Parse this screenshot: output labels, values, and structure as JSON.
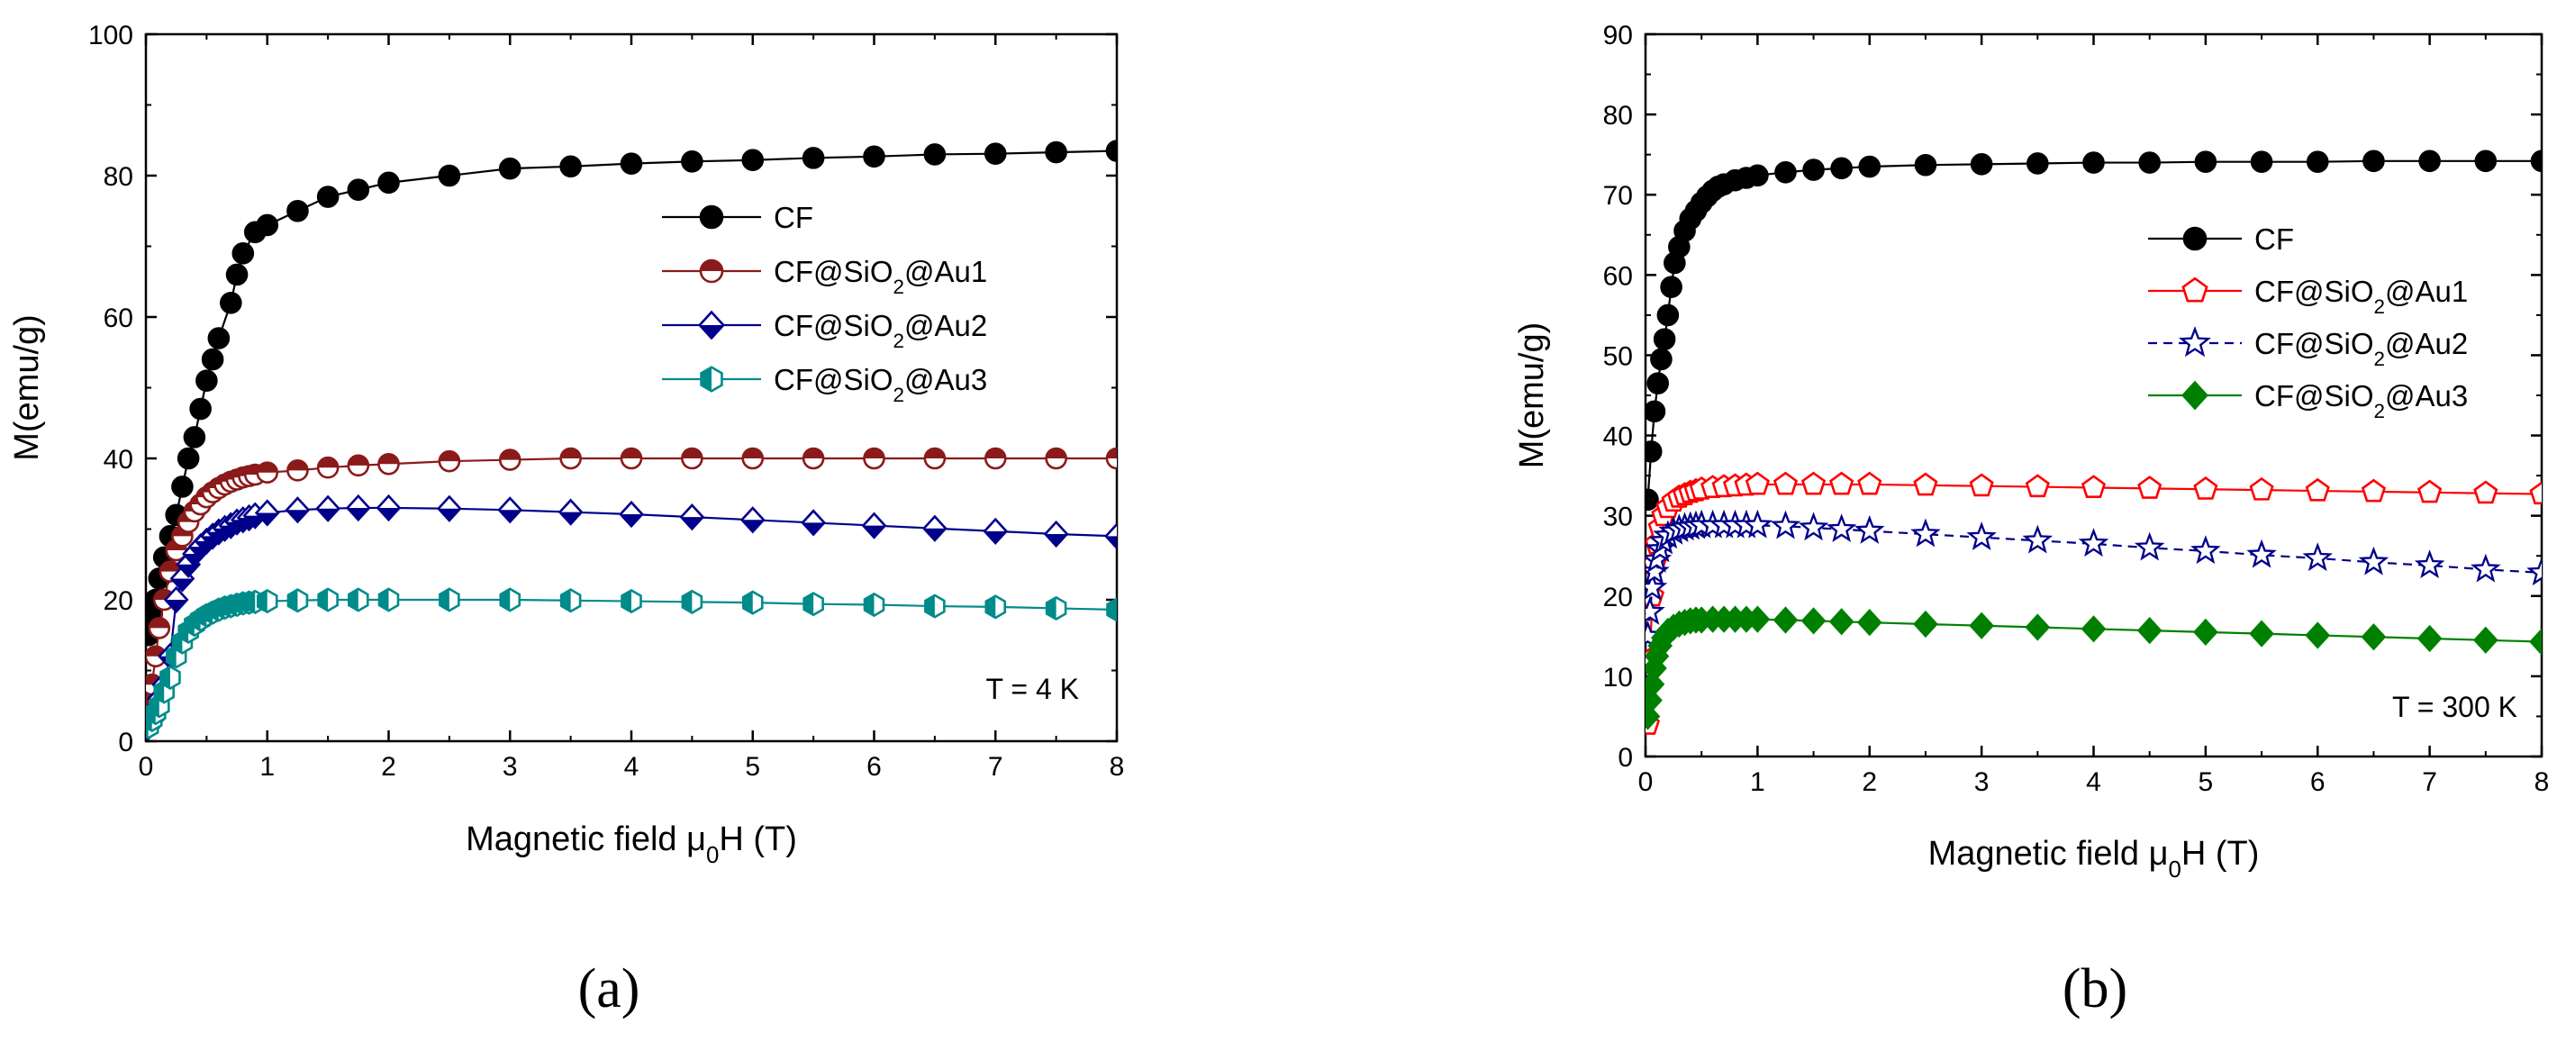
{
  "chart_data": [
    {
      "type": "line",
      "panel_label": "(a)",
      "xlabel": "Magnetic field μ₀H (T)",
      "xlabel_main": "Magnetic field ",
      "xlabel_mu": "μ",
      "xlabel_sub": "0",
      "xlabel_tail": "H (T)",
      "ylabel": "M(emu/g)",
      "xlim": [
        0,
        8
      ],
      "ylim": [
        0,
        100
      ],
      "xticks": [
        "0",
        "1",
        "2",
        "3",
        "4",
        "5",
        "6",
        "7",
        "8"
      ],
      "yticks": [
        "0",
        "20",
        "40",
        "60",
        "80",
        "100"
      ],
      "annotation": "T = 4 K",
      "legend_position": "center-right",
      "series": [
        {
          "name": "CF",
          "legend_main": "CF",
          "color": "#000000",
          "marker": "circle",
          "fill": "full",
          "dash": "solid",
          "x": [
            0.02,
            0.05,
            0.08,
            0.11,
            0.15,
            0.2,
            0.25,
            0.3,
            0.35,
            0.4,
            0.45,
            0.5,
            0.55,
            0.6,
            0.7,
            0.75,
            0.8,
            0.9,
            1.0,
            1.25,
            1.5,
            1.75,
            2.0,
            2.5,
            3.0,
            3.5,
            4.0,
            4.5,
            5.0,
            5.5,
            6.0,
            6.5,
            7.0,
            7.5,
            8.0
          ],
          "y": [
            15,
            18,
            20,
            23,
            26,
            29,
            32,
            36,
            40,
            43,
            47,
            51,
            54,
            57,
            62,
            66,
            69,
            72,
            73,
            75,
            77,
            78,
            79,
            80,
            81,
            81.3,
            81.7,
            82,
            82.2,
            82.5,
            82.7,
            83,
            83.1,
            83.3,
            83.5
          ]
        },
        {
          "name": "CF@SiO2@Au1",
          "legend_main": "CF@SiO",
          "legend_sub": "2",
          "legend_tail": "@Au1",
          "color": "#8B1A1A",
          "marker": "circle",
          "fill": "top",
          "dash": "solid",
          "x": [
            0.02,
            0.05,
            0.08,
            0.11,
            0.15,
            0.2,
            0.25,
            0.3,
            0.35,
            0.4,
            0.45,
            0.5,
            0.55,
            0.6,
            0.65,
            0.7,
            0.75,
            0.8,
            0.85,
            0.9,
            1.0,
            1.25,
            1.5,
            1.75,
            2.0,
            2.5,
            3.0,
            3.5,
            4.0,
            4.5,
            5.0,
            5.5,
            6.0,
            6.5,
            7.0,
            7.5,
            8.0
          ],
          "y": [
            5,
            8,
            12,
            16,
            20,
            24,
            27,
            29,
            31,
            32.5,
            33.5,
            34.5,
            35.2,
            35.8,
            36.3,
            36.7,
            37,
            37.3,
            37.5,
            37.7,
            38,
            38.3,
            38.7,
            39,
            39.2,
            39.6,
            39.8,
            40,
            40,
            40,
            40,
            40,
            40,
            40,
            40,
            40,
            40
          ]
        },
        {
          "name": "CF@SiO2@Au2",
          "legend_main": "CF@SiO",
          "legend_sub": "2",
          "legend_tail": "@Au2",
          "color": "#00008B",
          "marker": "diamond",
          "fill": "bottom",
          "dash": "solid",
          "x": [
            0.02,
            0.05,
            0.08,
            0.11,
            0.15,
            0.2,
            0.25,
            0.3,
            0.35,
            0.4,
            0.45,
            0.5,
            0.55,
            0.6,
            0.65,
            0.7,
            0.75,
            0.8,
            0.85,
            0.9,
            1.0,
            1.25,
            1.5,
            1.75,
            2.0,
            2.5,
            3.0,
            3.5,
            4.0,
            4.5,
            5.0,
            5.5,
            6.0,
            6.5,
            7.0,
            7.5,
            8.0
          ],
          "y": [
            2,
            3,
            4.5,
            6,
            8,
            12,
            20,
            23,
            25,
            26.5,
            27.5,
            28.3,
            29,
            29.6,
            30.1,
            30.5,
            31,
            31.3,
            31.6,
            31.9,
            32.3,
            32.7,
            32.9,
            33,
            33,
            32.9,
            32.7,
            32.4,
            32.1,
            31.7,
            31.3,
            30.9,
            30.5,
            30.1,
            29.7,
            29.3,
            29
          ]
        },
        {
          "name": "CF@SiO2@Au3",
          "legend_main": "CF@SiO",
          "legend_sub": "2",
          "legend_tail": "@Au3",
          "color": "#008B8B",
          "marker": "hexagon",
          "fill": "left",
          "dash": "solid",
          "x": [
            0.02,
            0.05,
            0.08,
            0.11,
            0.15,
            0.2,
            0.25,
            0.3,
            0.35,
            0.4,
            0.45,
            0.5,
            0.55,
            0.6,
            0.65,
            0.7,
            0.75,
            0.8,
            0.85,
            0.9,
            1.0,
            1.25,
            1.5,
            1.75,
            2.0,
            2.5,
            3.0,
            3.5,
            4.0,
            4.5,
            5.0,
            5.5,
            6.0,
            6.5,
            7.0,
            7.5,
            8.0
          ],
          "y": [
            2,
            3,
            4,
            5,
            7,
            9,
            12,
            14,
            15.5,
            16.5,
            17.2,
            17.8,
            18.2,
            18.6,
            18.9,
            19.1,
            19.3,
            19.5,
            19.6,
            19.7,
            19.8,
            19.9,
            20,
            20,
            20,
            20,
            20,
            19.9,
            19.8,
            19.7,
            19.6,
            19.4,
            19.3,
            19.1,
            19,
            18.8,
            18.6
          ]
        }
      ]
    },
    {
      "type": "line",
      "panel_label": "(b)",
      "xlabel": "Magnetic field μ₀H (T)",
      "xlabel_main": "Magnetic field ",
      "xlabel_mu": "μ",
      "xlabel_sub": "0",
      "xlabel_tail": "H (T)",
      "ylabel": "M(emu/g)",
      "xlim": [
        0,
        8
      ],
      "ylim": [
        0,
        90
      ],
      "xticks": [
        "0",
        "1",
        "2",
        "3",
        "4",
        "5",
        "6",
        "7",
        "8"
      ],
      "yticks": [
        "0",
        "10",
        "20",
        "30",
        "40",
        "50",
        "60",
        "70",
        "80",
        "90"
      ],
      "annotation": "T = 300 K",
      "legend_position": "center-right",
      "series": [
        {
          "name": "CF",
          "legend_main": "CF",
          "color": "#000000",
          "marker": "circle",
          "fill": "full",
          "dash": "solid",
          "x": [
            0.02,
            0.05,
            0.08,
            0.11,
            0.14,
            0.17,
            0.2,
            0.23,
            0.26,
            0.3,
            0.35,
            0.4,
            0.45,
            0.5,
            0.55,
            0.6,
            0.65,
            0.7,
            0.8,
            0.9,
            1.0,
            1.25,
            1.5,
            1.75,
            2.0,
            2.5,
            3.0,
            3.5,
            4.0,
            4.5,
            5.0,
            5.5,
            6.0,
            6.5,
            7.0,
            7.5,
            8.0
          ],
          "y": [
            32,
            38,
            43,
            46.5,
            49.5,
            52,
            55,
            58.5,
            61.5,
            63.5,
            65.5,
            67,
            68,
            69,
            69.8,
            70.5,
            71,
            71.3,
            71.8,
            72.1,
            72.4,
            72.8,
            73.1,
            73.3,
            73.5,
            73.7,
            73.8,
            73.9,
            74,
            74,
            74.1,
            74.1,
            74.1,
            74.2,
            74.2,
            74.2,
            74.2
          ]
        },
        {
          "name": "CF@SiO2@Au1",
          "legend_main": "CF@SiO",
          "legend_sub": "2",
          "legend_tail": "@Au1",
          "color": "#FF0000",
          "marker": "pentagon",
          "fill": "none",
          "dash": "solid",
          "x": [
            0.02,
            0.04,
            0.06,
            0.08,
            0.1,
            0.13,
            0.16,
            0.2,
            0.25,
            0.3,
            0.35,
            0.4,
            0.45,
            0.5,
            0.6,
            0.7,
            0.8,
            0.9,
            1.0,
            1.25,
            1.5,
            1.75,
            2.0,
            2.5,
            3.0,
            3.5,
            4.0,
            4.5,
            5.0,
            5.5,
            6.0,
            6.5,
            7.0,
            7.5,
            8.0
          ],
          "y": [
            4,
            12,
            20,
            24,
            26.5,
            28.5,
            30,
            31,
            31.8,
            32.3,
            32.6,
            32.9,
            33.1,
            33.3,
            33.5,
            33.6,
            33.7,
            33.8,
            33.9,
            33.9,
            33.9,
            33.9,
            33.9,
            33.8,
            33.7,
            33.6,
            33.5,
            33.4,
            33.3,
            33.2,
            33.1,
            33,
            32.9,
            32.8,
            32.7
          ]
        },
        {
          "name": "CF@SiO2@Au2",
          "legend_main": "CF@SiO",
          "legend_sub": "2",
          "legend_tail": "@Au2",
          "color": "#00008B",
          "marker": "star",
          "fill": "none",
          "dash": "dashed",
          "x": [
            0.02,
            0.04,
            0.06,
            0.08,
            0.1,
            0.13,
            0.16,
            0.2,
            0.25,
            0.3,
            0.35,
            0.4,
            0.45,
            0.5,
            0.6,
            0.7,
            0.8,
            0.9,
            1.0,
            1.25,
            1.5,
            1.75,
            2.0,
            2.5,
            3.0,
            3.5,
            4.0,
            4.5,
            5.0,
            5.5,
            6.0,
            6.5,
            7.0,
            7.5,
            8.0
          ],
          "y": [
            15,
            18,
            21,
            23,
            24.5,
            25.8,
            26.8,
            27.5,
            28,
            28.3,
            28.5,
            28.6,
            28.7,
            28.8,
            28.8,
            28.8,
            28.8,
            28.8,
            28.8,
            28.7,
            28.5,
            28.3,
            28.1,
            27.7,
            27.3,
            26.9,
            26.5,
            26,
            25.6,
            25.1,
            24.7,
            24.2,
            23.8,
            23.3,
            22.9
          ]
        },
        {
          "name": "CF@SiO2@Au3",
          "legend_main": "CF@SiO",
          "legend_sub": "2",
          "legend_tail": "@Au3",
          "color": "#008000",
          "marker": "diamond",
          "fill": "full",
          "dash": "solid",
          "x": [
            0.02,
            0.04,
            0.06,
            0.08,
            0.1,
            0.13,
            0.16,
            0.2,
            0.25,
            0.3,
            0.35,
            0.4,
            0.45,
            0.5,
            0.6,
            0.7,
            0.8,
            0.9,
            1.0,
            1.25,
            1.5,
            1.75,
            2.0,
            2.5,
            3.0,
            3.5,
            4.0,
            4.5,
            5.0,
            5.5,
            6.0,
            6.5,
            7.0,
            7.5,
            8.0
          ],
          "y": [
            5,
            7,
            9,
            11,
            12.5,
            13.8,
            14.8,
            15.6,
            16.1,
            16.5,
            16.7,
            16.9,
            17,
            17,
            17.1,
            17.1,
            17.1,
            17.1,
            17.1,
            17,
            16.9,
            16.8,
            16.7,
            16.5,
            16.3,
            16.1,
            15.9,
            15.7,
            15.5,
            15.3,
            15.1,
            14.9,
            14.7,
            14.5,
            14.3
          ]
        }
      ]
    }
  ]
}
